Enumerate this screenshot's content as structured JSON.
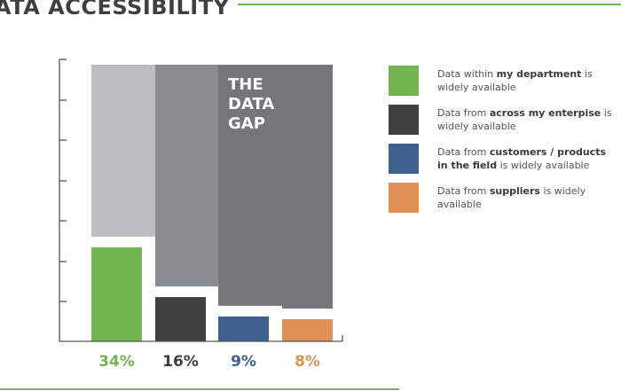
{
  "page_title": "ATA ACCESSIBILITY",
  "colors": {
    "accent_line": "#76b553",
    "axis": "#555555"
  },
  "gap_label": [
    "THE",
    "DATA",
    "GAP"
  ],
  "legend": [
    {
      "pre": "Data within ",
      "bold": "my department",
      "post": " is widely available",
      "color": "#72b550"
    },
    {
      "pre": "Data from ",
      "bold": "across my enterpise",
      "post": " is widely available",
      "color": "#3f3f3f"
    },
    {
      "pre": "Data from ",
      "bold": "customers / products in the field",
      "post": " is widely available",
      "color": "#3e6190"
    },
    {
      "pre": "Data from ",
      "bold": "suppliers",
      "post": " is widely available",
      "color": "#de9154"
    }
  ],
  "chart_data": {
    "type": "bar",
    "title": "",
    "xlabel": "",
    "ylabel": "",
    "unit": "%",
    "ylim": [
      0,
      100
    ],
    "categories": [
      "my department",
      "across my enterpise",
      "customers / products in the field",
      "suppliers"
    ],
    "values": [
      34,
      16,
      9,
      8
    ],
    "labels": [
      "34%",
      "16%",
      "9%",
      "8%"
    ],
    "colors": [
      "#72b550",
      "#3f3f3f",
      "#3e6190",
      "#de9154"
    ],
    "gap_colors": [
      "#bbbdbf",
      "#8a8e90",
      "#737779",
      "#737779"
    ],
    "annotation": "THE DATA GAP"
  }
}
